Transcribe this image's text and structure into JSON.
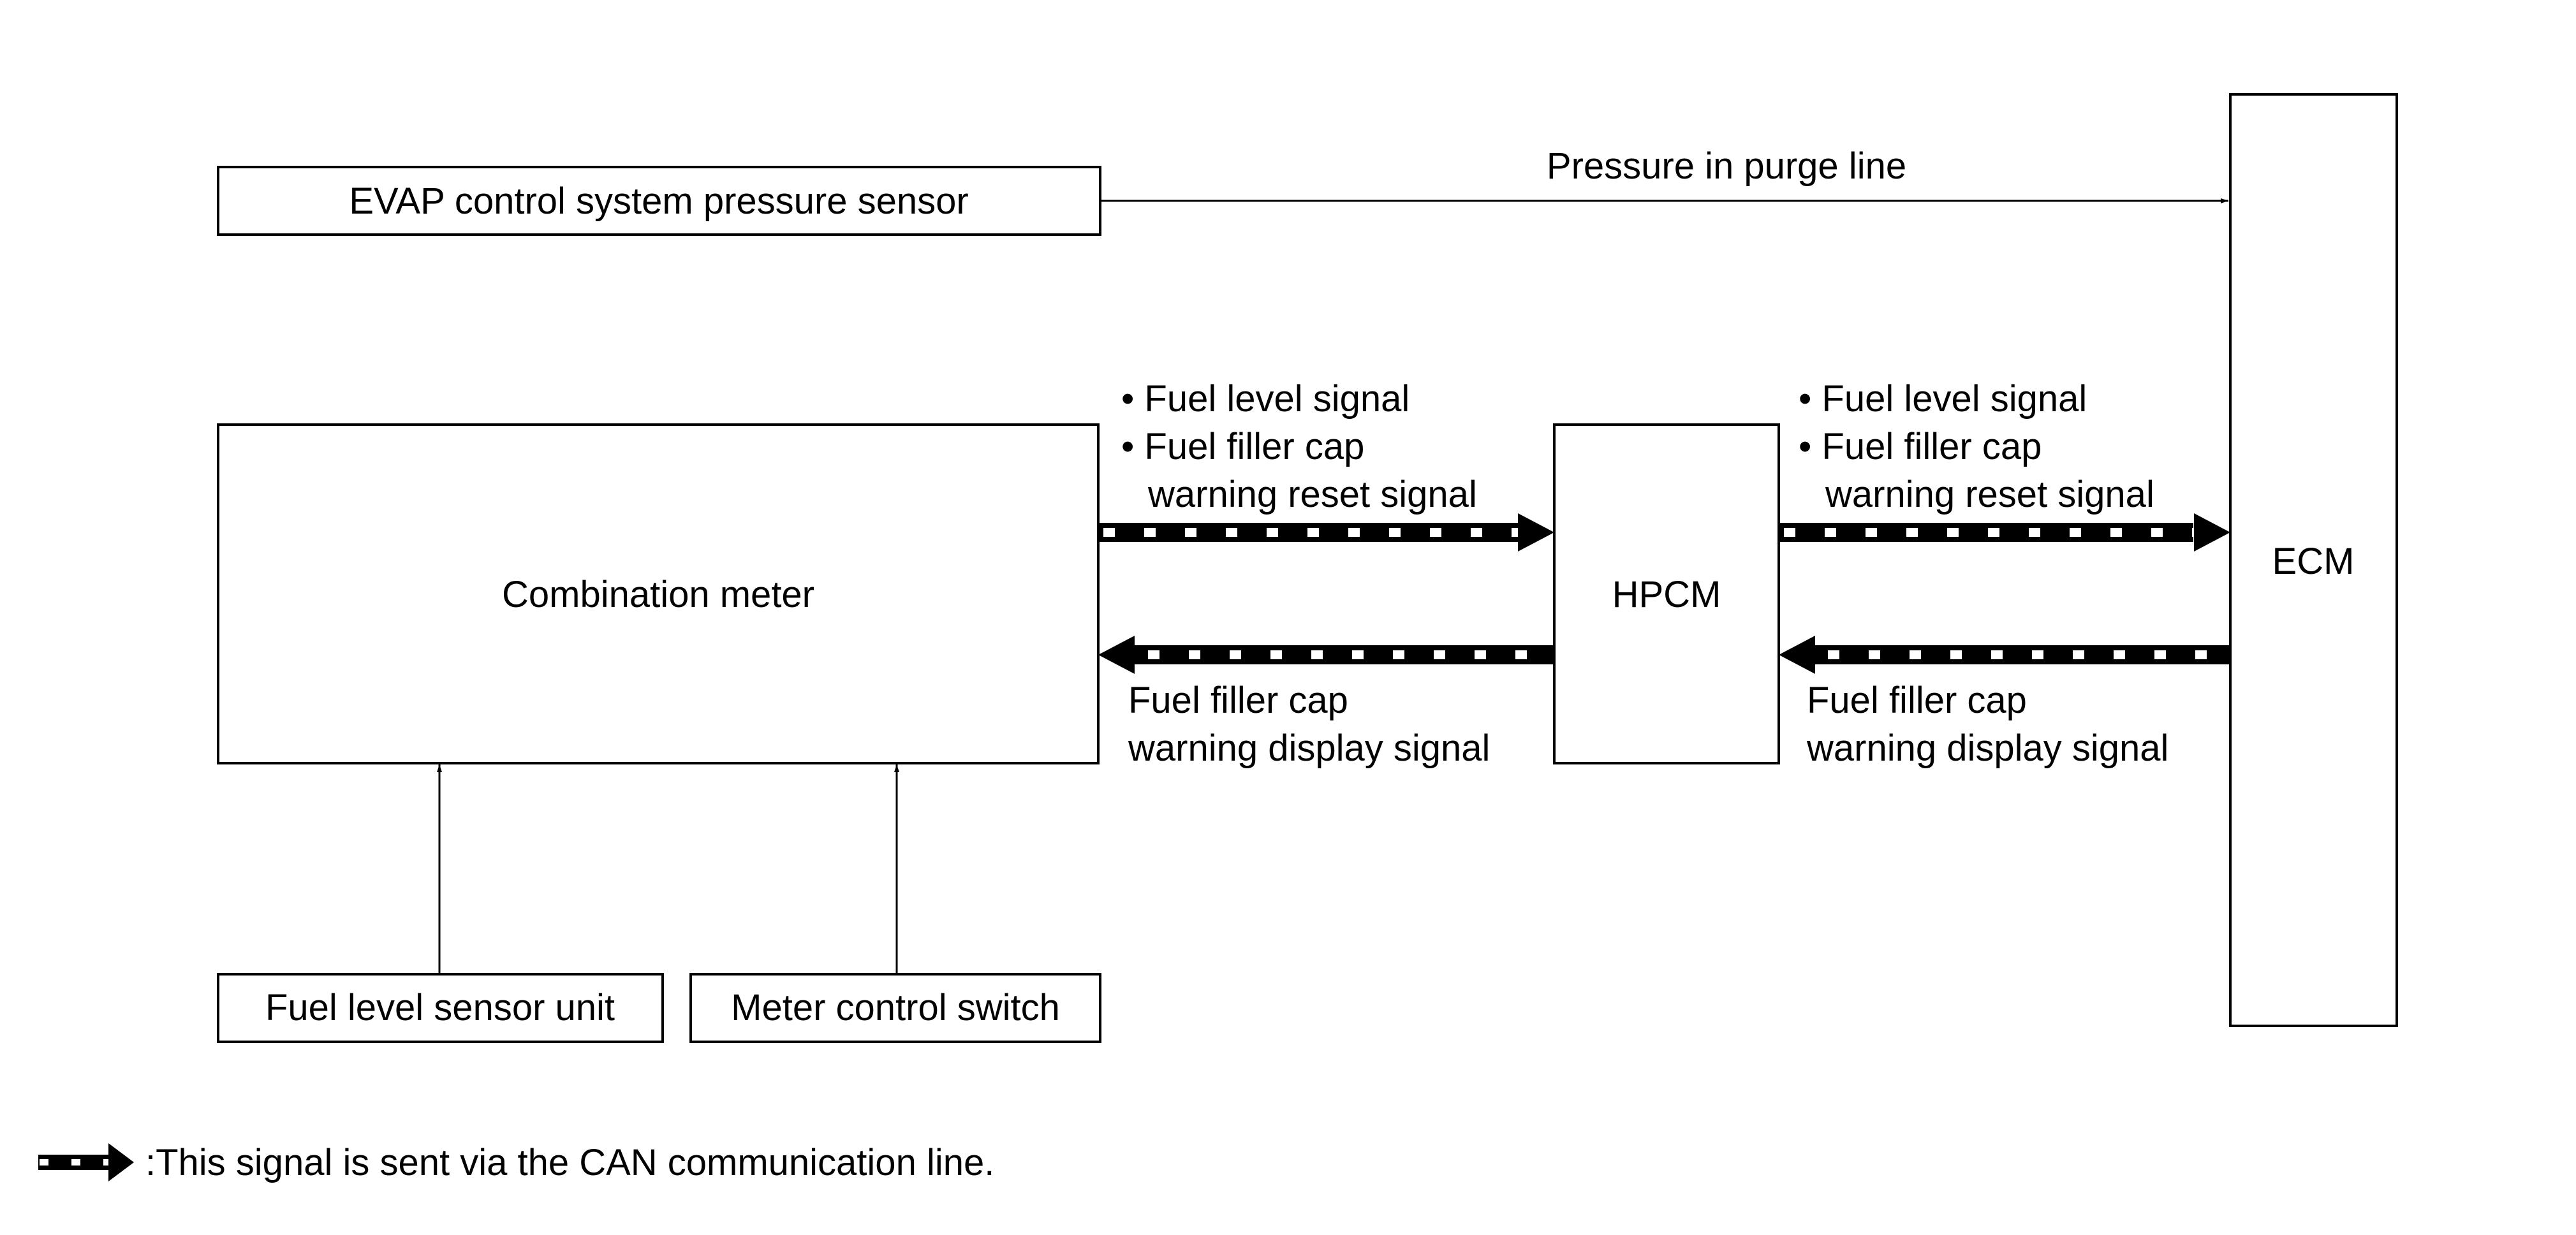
{
  "boxes": {
    "evap_sensor": "EVAP control system pressure sensor",
    "ecm": "ECM",
    "combination_meter": "Combination meter",
    "hpcm": "HPCM",
    "fuel_level_sensor": "Fuel level sensor unit",
    "meter_control_switch": "Meter control switch"
  },
  "signals": {
    "pressure": "Pressure in purge line",
    "meter_to_hpcm": [
      "• Fuel level signal",
      "• Fuel filler cap",
      "warning reset signal"
    ],
    "hpcm_to_ecm": [
      "• Fuel level signal",
      "• Fuel filler cap",
      "warning reset signal"
    ],
    "hpcm_to_meter": [
      "Fuel filler cap",
      "warning display signal"
    ],
    "ecm_to_hpcm": [
      "Fuel filler cap",
      "warning display signal"
    ]
  },
  "legend": {
    "text": ":This signal is sent via the CAN communication line."
  }
}
